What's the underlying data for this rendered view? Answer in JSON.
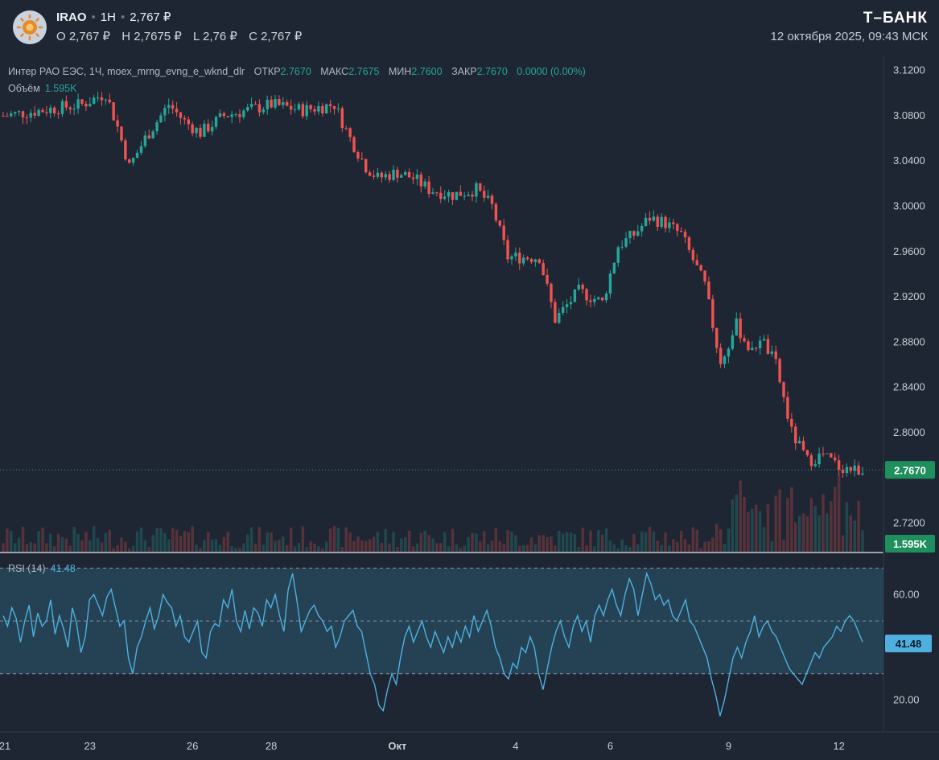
{
  "header": {
    "symbol": "IRAO",
    "interval": "1H",
    "last_price": "2,767 ₽",
    "open": "O 2,767 ₽",
    "high": "H 2,7675 ₽",
    "low": "L 2,76 ₽",
    "close": "C 2,767 ₽",
    "brand": "Т–БАНК",
    "datetime": "12 октября 2025, 09:43 МСК"
  },
  "legend": {
    "title": "Интер РАО ЕЭС, 1Ч, moex_mrng_evng_e_wknd_dlr",
    "open_label": "ОТКР",
    "open_value": "2.7670",
    "high_label": "МАКС",
    "high_value": "2.7675",
    "low_label": "МИН",
    "low_value": "2.7600",
    "close_label": "ЗАКР",
    "close_value": "2.7670",
    "change": "0.0000 (0.00%)",
    "volume_label": "Объём",
    "volume_value": "1.595K"
  },
  "rsi_legend": {
    "label": "RSI (14)",
    "value": "41.48"
  },
  "colors": {
    "up": "#26a69a",
    "down": "#ef5350",
    "rsi_line": "#4fb0e0",
    "background": "#1e2633"
  },
  "chart_data": [
    {
      "type": "candlestick",
      "name": "Интер РАО ЕЭС, 1Ч",
      "y_axis_ticks": [
        3.12,
        3.08,
        3.04,
        3.0,
        2.96,
        2.92,
        2.88,
        2.84,
        2.8,
        2.72
      ],
      "y_axis_labels": [
        "3.1200",
        "3.0800",
        "3.0400",
        "3.0000",
        "2.9600",
        "2.9200",
        "2.8800",
        "2.8400",
        "2.8000",
        "2.7200"
      ],
      "ylim": [
        2.6947,
        3.134
      ],
      "x_tick_labels": [
        "21",
        "23",
        "26",
        "28",
        "Окт",
        "4",
        "6",
        "9",
        "12"
      ],
      "x_tick_positions": [
        0,
        22,
        48,
        68,
        100,
        130,
        154,
        184,
        212
      ],
      "x_range": [
        0,
        218
      ],
      "last_price_label": "2.7670",
      "last_price": 2.767,
      "close_path": [
        [
          0,
          3.08
        ],
        [
          10,
          3.085
        ],
        [
          20,
          3.09
        ],
        [
          26,
          3.1
        ],
        [
          29,
          3.07
        ],
        [
          32,
          3.035
        ],
        [
          36,
          3.06
        ],
        [
          42,
          3.09
        ],
        [
          46,
          3.075
        ],
        [
          50,
          3.065
        ],
        [
          56,
          3.08
        ],
        [
          62,
          3.085
        ],
        [
          68,
          3.09
        ],
        [
          76,
          3.085
        ],
        [
          84,
          3.09
        ],
        [
          88,
          3.06
        ],
        [
          92,
          3.035
        ],
        [
          95,
          3.025
        ],
        [
          100,
          3.03
        ],
        [
          104,
          3.025
        ],
        [
          108,
          3.015
        ],
        [
          114,
          3.01
        ],
        [
          120,
          3.015
        ],
        [
          124,
          3.0
        ],
        [
          128,
          2.955
        ],
        [
          136,
          2.955
        ],
        [
          140,
          2.9
        ],
        [
          146,
          2.925
        ],
        [
          152,
          2.915
        ],
        [
          156,
          2.965
        ],
        [
          160,
          2.975
        ],
        [
          164,
          2.99
        ],
        [
          168,
          2.985
        ],
        [
          172,
          2.975
        ],
        [
          178,
          2.93
        ],
        [
          182,
          2.86
        ],
        [
          186,
          2.895
        ],
        [
          190,
          2.87
        ],
        [
          192,
          2.885
        ],
        [
          196,
          2.86
        ],
        [
          200,
          2.8
        ],
        [
          204,
          2.775
        ],
        [
          208,
          2.78
        ],
        [
          212,
          2.77
        ],
        [
          216,
          2.767
        ]
      ]
    },
    {
      "type": "line",
      "name": "RSI (14)",
      "y_axis_ticks": [
        60,
        20
      ],
      "y_axis_labels": [
        "60.00",
        "20.00"
      ],
      "ylim": [
        8,
        75
      ],
      "bands": [
        70,
        50,
        30
      ],
      "last_value_label": "41.48",
      "last_value": 41.48,
      "x_range": [
        0,
        218
      ],
      "y": [
        52,
        48,
        55,
        51,
        42,
        50,
        56,
        44,
        53,
        48,
        50,
        58,
        45,
        52,
        47,
        40,
        55,
        49,
        38,
        44,
        58,
        60,
        56,
        52,
        59,
        62,
        55,
        48,
        50,
        36,
        30,
        40,
        44,
        50,
        55,
        47,
        52,
        60,
        57,
        55,
        48,
        52,
        44,
        42,
        46,
        50,
        38,
        36,
        46,
        49,
        48,
        58,
        55,
        62,
        50,
        46,
        54,
        47,
        55,
        53,
        48,
        58,
        55,
        60,
        52,
        46,
        62,
        68,
        58,
        46,
        50,
        54,
        56,
        52,
        50,
        46,
        48,
        40,
        44,
        50,
        52,
        54,
        48,
        46,
        38,
        30,
        26,
        18,
        16,
        24,
        30,
        26,
        36,
        44,
        48,
        42,
        46,
        50,
        44,
        40,
        46,
        42,
        38,
        44,
        40,
        46,
        42,
        48,
        44,
        52,
        46,
        50,
        54,
        48,
        40,
        36,
        30,
        28,
        34,
        32,
        40,
        38,
        44,
        40,
        30,
        24,
        32,
        40,
        46,
        50,
        44,
        40,
        48,
        52,
        46,
        50,
        42,
        52,
        56,
        52,
        58,
        62,
        56,
        52,
        60,
        66,
        62,
        52,
        60,
        68,
        64,
        58,
        60,
        56,
        58,
        52,
        50,
        54,
        58,
        50,
        48,
        44,
        40,
        36,
        28,
        22,
        14,
        20,
        28,
        36,
        40,
        36,
        42,
        46,
        52,
        44,
        48,
        50,
        46,
        44,
        40,
        36,
        32,
        30,
        28,
        26,
        30,
        34,
        38,
        36,
        40,
        42,
        44,
        48,
        46,
        50,
        52,
        50,
        46,
        42
      ]
    },
    {
      "type": "bar",
      "name": "Объём",
      "last_value_label": "1.595K",
      "last_value": 1595
    }
  ]
}
